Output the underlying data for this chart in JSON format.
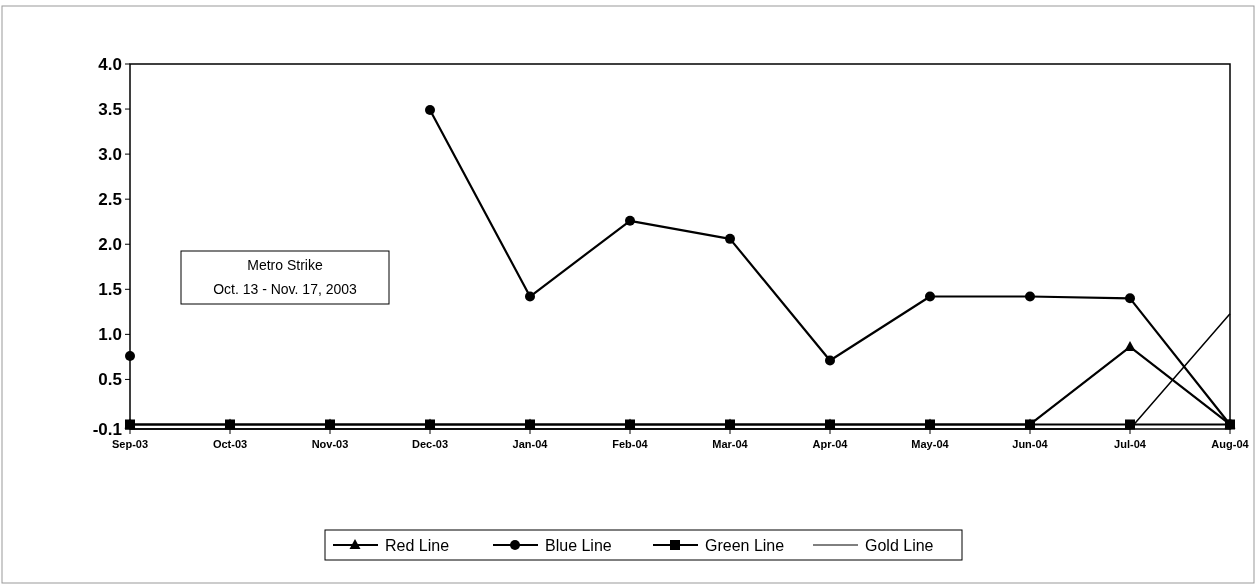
{
  "chart_data": {
    "type": "line",
    "categories": [
      "Sep-03",
      "Oct-03",
      "Nov-03",
      "Dec-03",
      "Jan-04",
      "Feb-04",
      "Mar-04",
      "Apr-04",
      "May-04",
      "Jun-04",
      "Jul-04",
      "Aug-04"
    ],
    "series": [
      {
        "name": "Red Line",
        "color": "#000000",
        "marker": "triangle",
        "values": [
          0,
          0,
          0,
          0,
          0,
          0,
          0,
          0,
          0,
          0,
          0.86,
          0
        ]
      },
      {
        "name": "Blue Line",
        "color": "#000000",
        "marker": "circle",
        "values": [
          0.76,
          null,
          null,
          3.49,
          1.42,
          2.26,
          2.06,
          0.71,
          1.42,
          1.42,
          1.4,
          0
        ]
      },
      {
        "name": "Green Line",
        "color": "#000000",
        "marker": "square",
        "values": [
          0,
          0,
          0,
          0,
          0,
          0,
          0,
          0,
          0,
          0,
          0,
          0
        ]
      },
      {
        "name": "Gold Line",
        "color": "#000000",
        "marker": "none",
        "values": [
          -0.05,
          -0.05,
          -0.05,
          -0.05,
          -0.05,
          -0.05,
          -0.05,
          -0.05,
          -0.05,
          -0.05,
          -0.05,
          1.23
        ]
      }
    ],
    "ylim": [
      -0.05,
      4
    ],
    "yticks": [
      {
        "value": -0.05,
        "label": "-0.1"
      },
      0.5,
      {
        "value": 1,
        "label": "1.0"
      },
      1.5,
      {
        "value": 2,
        "label": "2.0"
      },
      2.5,
      {
        "value": 3,
        "label": "3.0"
      },
      3.5,
      {
        "value": 4,
        "label": "4.0"
      }
    ],
    "annotations": [
      "Metro Strike\nOct. 13 - Nov. 17, 2003"
    ],
    "legend": "bottom",
    "grid": false
  }
}
